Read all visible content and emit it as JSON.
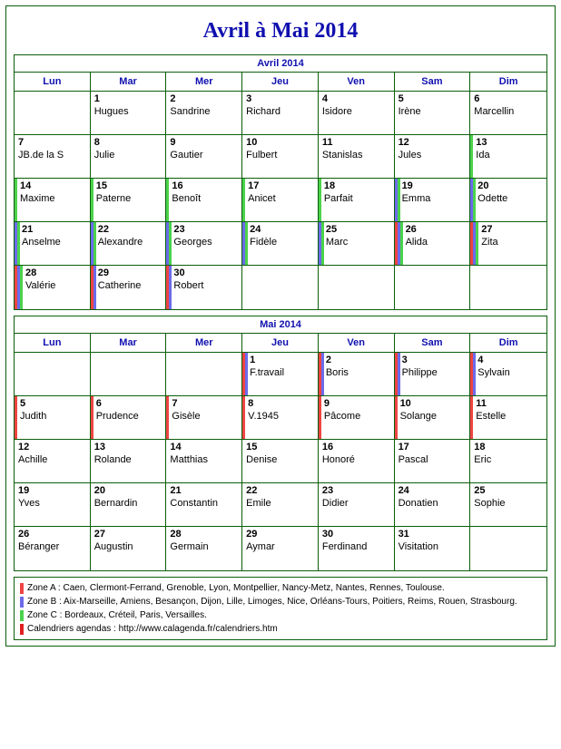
{
  "title": "Avril à Mai 2014",
  "colors": {
    "zoneA": "#ef4444",
    "zoneB": "#6b6bea",
    "zoneC": "#4cd24c",
    "link": "#e02020"
  },
  "dow": [
    "Lun",
    "Mar",
    "Mer",
    "Jeu",
    "Ven",
    "Sam",
    "Dim"
  ],
  "months": [
    {
      "title": "Avril 2014",
      "startCol": 1,
      "days": [
        {
          "n": "1",
          "s": "Hugues",
          "z": []
        },
        {
          "n": "2",
          "s": "Sandrine",
          "z": []
        },
        {
          "n": "3",
          "s": "Richard",
          "z": []
        },
        {
          "n": "4",
          "s": "Isidore",
          "z": []
        },
        {
          "n": "5",
          "s": "Irène",
          "z": []
        },
        {
          "n": "6",
          "s": "Marcellin",
          "z": []
        },
        {
          "n": "7",
          "s": "JB.de la S",
          "z": []
        },
        {
          "n": "8",
          "s": "Julie",
          "z": []
        },
        {
          "n": "9",
          "s": "Gautier",
          "z": []
        },
        {
          "n": "10",
          "s": "Fulbert",
          "z": []
        },
        {
          "n": "11",
          "s": "Stanislas",
          "z": []
        },
        {
          "n": "12",
          "s": "Jules",
          "z": []
        },
        {
          "n": "13",
          "s": "Ida",
          "z": [
            "C"
          ]
        },
        {
          "n": "14",
          "s": "Maxime",
          "z": [
            "C"
          ]
        },
        {
          "n": "15",
          "s": "Paterne",
          "z": [
            "C"
          ]
        },
        {
          "n": "16",
          "s": "Benoît",
          "z": [
            "C"
          ]
        },
        {
          "n": "17",
          "s": "Anicet",
          "z": [
            "C"
          ]
        },
        {
          "n": "18",
          "s": "Parfait",
          "z": [
            "C"
          ]
        },
        {
          "n": "19",
          "s": "Emma",
          "z": [
            "B",
            "C"
          ]
        },
        {
          "n": "20",
          "s": "Odette",
          "z": [
            "B",
            "C"
          ]
        },
        {
          "n": "21",
          "s": "Anselme",
          "z": [
            "B",
            "C"
          ]
        },
        {
          "n": "22",
          "s": "Alexandre",
          "z": [
            "B",
            "C"
          ]
        },
        {
          "n": "23",
          "s": "Georges",
          "z": [
            "B",
            "C"
          ]
        },
        {
          "n": "24",
          "s": "Fidèle",
          "z": [
            "B",
            "C"
          ]
        },
        {
          "n": "25",
          "s": "Marc",
          "z": [
            "B",
            "C"
          ]
        },
        {
          "n": "26",
          "s": "Alida",
          "z": [
            "A",
            "B",
            "C"
          ]
        },
        {
          "n": "27",
          "s": "Zita",
          "z": [
            "A",
            "B",
            "C"
          ]
        },
        {
          "n": "28",
          "s": "Valérie",
          "z": [
            "A",
            "B",
            "C"
          ]
        },
        {
          "n": "29",
          "s": "Catherine",
          "z": [
            "A",
            "B"
          ]
        },
        {
          "n": "30",
          "s": "Robert",
          "z": [
            "A",
            "B"
          ]
        }
      ]
    },
    {
      "title": "Mai 2014",
      "startCol": 3,
      "days": [
        {
          "n": "1",
          "s": "F.travail",
          "z": [
            "A",
            "B"
          ]
        },
        {
          "n": "2",
          "s": "Boris",
          "z": [
            "A",
            "B"
          ]
        },
        {
          "n": "3",
          "s": "Philippe",
          "z": [
            "A",
            "B"
          ]
        },
        {
          "n": "4",
          "s": "Sylvain",
          "z": [
            "A",
            "B"
          ]
        },
        {
          "n": "5",
          "s": "Judith",
          "z": [
            "A"
          ]
        },
        {
          "n": "6",
          "s": "Prudence",
          "z": [
            "A"
          ]
        },
        {
          "n": "7",
          "s": "Gisèle",
          "z": [
            "A"
          ]
        },
        {
          "n": "8",
          "s": "V.1945",
          "z": [
            "A"
          ]
        },
        {
          "n": "9",
          "s": "Pâcome",
          "z": [
            "A"
          ]
        },
        {
          "n": "10",
          "s": "Solange",
          "z": [
            "A"
          ]
        },
        {
          "n": "11",
          "s": "Estelle",
          "z": [
            "A"
          ]
        },
        {
          "n": "12",
          "s": "Achille",
          "z": []
        },
        {
          "n": "13",
          "s": "Rolande",
          "z": []
        },
        {
          "n": "14",
          "s": "Matthias",
          "z": []
        },
        {
          "n": "15",
          "s": "Denise",
          "z": []
        },
        {
          "n": "16",
          "s": "Honoré",
          "z": []
        },
        {
          "n": "17",
          "s": "Pascal",
          "z": []
        },
        {
          "n": "18",
          "s": "Eric",
          "z": []
        },
        {
          "n": "19",
          "s": "Yves",
          "z": []
        },
        {
          "n": "20",
          "s": "Bernardin",
          "z": []
        },
        {
          "n": "21",
          "s": "Constantin",
          "z": []
        },
        {
          "n": "22",
          "s": "Emile",
          "z": []
        },
        {
          "n": "23",
          "s": "Didier",
          "z": []
        },
        {
          "n": "24",
          "s": "Donatien",
          "z": []
        },
        {
          "n": "25",
          "s": "Sophie",
          "z": []
        },
        {
          "n": "26",
          "s": "Béranger",
          "z": []
        },
        {
          "n": "27",
          "s": "Augustin",
          "z": []
        },
        {
          "n": "28",
          "s": "Germain",
          "z": []
        },
        {
          "n": "29",
          "s": "Aymar",
          "z": []
        },
        {
          "n": "30",
          "s": "Ferdinand",
          "z": []
        },
        {
          "n": "31",
          "s": "Visitation",
          "z": []
        }
      ]
    }
  ],
  "legend": [
    {
      "zone": "A",
      "text": "Zone A : Caen, Clermont-Ferrand, Grenoble, Lyon, Montpellier, Nancy-Metz, Nantes, Rennes, Toulouse."
    },
    {
      "zone": "B",
      "text": "Zone B : Aix-Marseille, Amiens, Besançon, Dijon, Lille, Limoges, Nice, Orléans-Tours, Poitiers, Reims, Rouen, Strasbourg."
    },
    {
      "zone": "C",
      "text": "Zone C : Bordeaux, Créteil, Paris, Versailles."
    },
    {
      "zone": "link",
      "text": "Calendriers agendas : http://www.calagenda.fr/calendriers.htm"
    }
  ]
}
